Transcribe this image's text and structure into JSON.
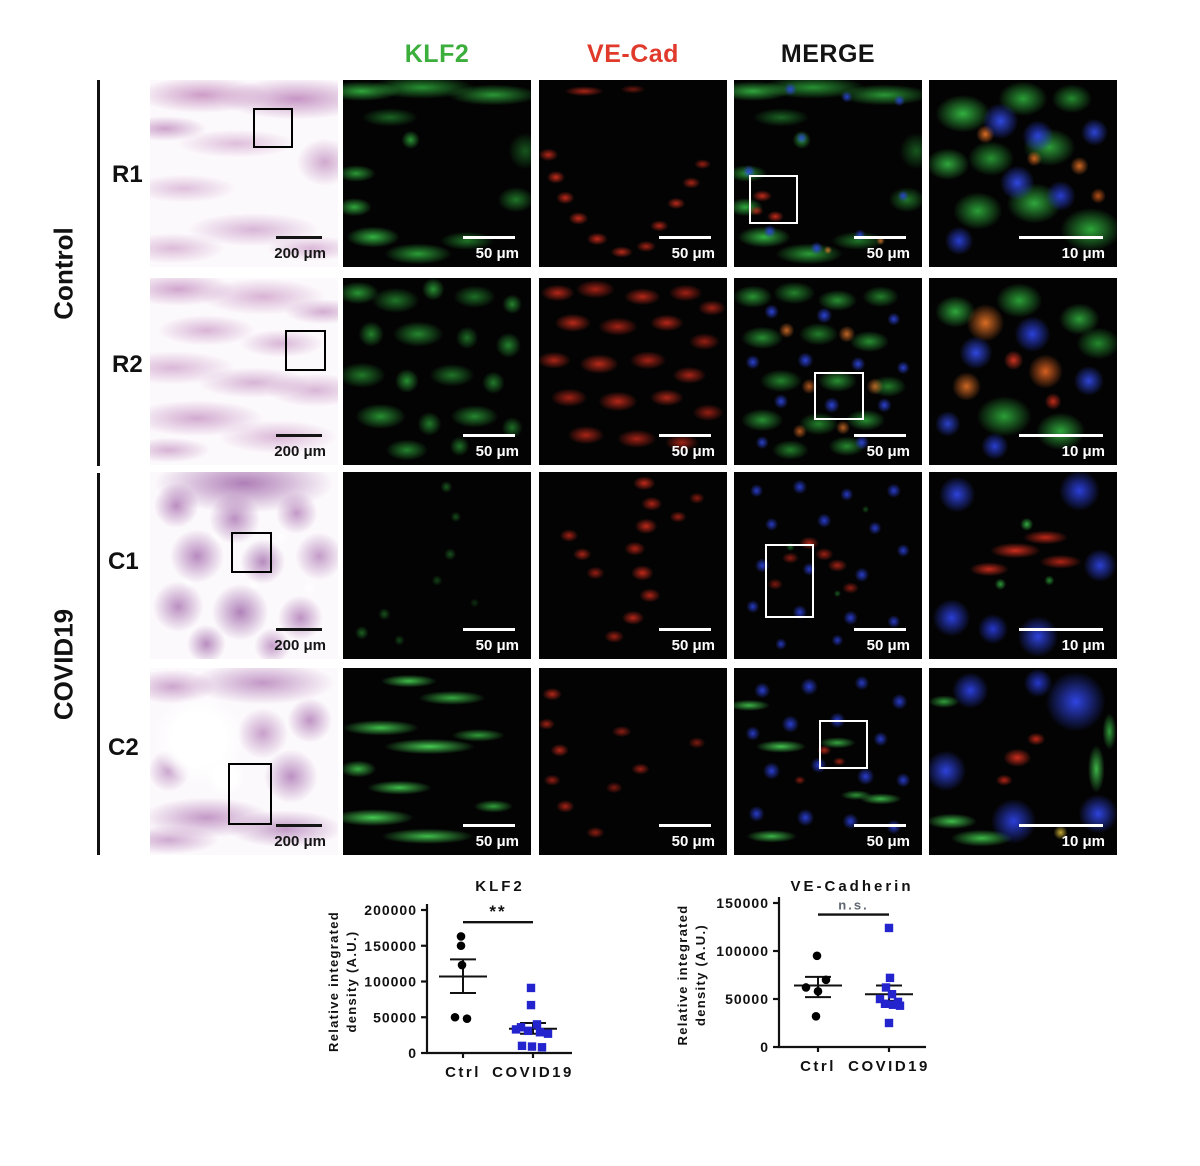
{
  "figure": {
    "col_headers": [
      {
        "label": "KLF2",
        "color": "#3cae3c"
      },
      {
        "label": "VE-Cad",
        "color": "#e03a2c"
      },
      {
        "label": "MERGE",
        "color": "#131313"
      }
    ],
    "row_groups": [
      {
        "label": "Control",
        "rows": [
          {
            "label": "R1"
          },
          {
            "label": "R2"
          }
        ]
      },
      {
        "label": "COVID19",
        "rows": [
          {
            "label": "C1"
          },
          {
            "label": "C2"
          }
        ]
      }
    ],
    "scales": {
      "histology": "200 μm",
      "fluorescence": "50 μm",
      "zoom": "10 μm"
    }
  },
  "chart_data": [
    {
      "type": "scatter",
      "title": "KLF2",
      "ylabel_lines": [
        "Relative integrated",
        "density (A.U.)"
      ],
      "ylabel": "Relative integrated density (A.U.)",
      "ylim": [
        0,
        200000
      ],
      "yticks": [
        0,
        50000,
        100000,
        150000,
        200000
      ],
      "grid": false,
      "categories": [
        "Ctrl",
        "COVID19"
      ],
      "series": [
        {
          "name": "Ctrl",
          "marker": "circle",
          "color": "#000000",
          "points": [
            [
              163000,
              -2
            ],
            [
              150000,
              -2
            ],
            [
              123000,
              -1
            ],
            [
              50000,
              -8
            ],
            [
              48000,
              4
            ]
          ],
          "mean": 107000,
          "sem_low": 84000,
          "sem_high": 131000
        },
        {
          "name": "COVID19",
          "marker": "square",
          "color": "#2424cf",
          "points": [
            [
              91000,
              -2
            ],
            [
              67000,
              -2
            ],
            [
              40000,
              4
            ],
            [
              36000,
              -12
            ],
            [
              33000,
              -17
            ],
            [
              31000,
              -5
            ],
            [
              29000,
              7
            ],
            [
              27000,
              15
            ],
            [
              10000,
              -11
            ],
            [
              9000,
              -1
            ],
            [
              8000,
              9
            ]
          ],
          "mean": 34000,
          "sem_low": 27000,
          "sem_high": 42000
        }
      ],
      "significance": {
        "label": "**",
        "y": 183000
      }
    },
    {
      "type": "scatter",
      "title": "VE-Cadherin",
      "ylabel_lines": [
        "Relative integrated",
        "density (A.U.)"
      ],
      "ylabel": "Relative integrated density (A.U.)",
      "ylim": [
        0,
        150000
      ],
      "yticks": [
        0,
        50000,
        100000,
        150000
      ],
      "grid": false,
      "categories": [
        "Ctrl",
        "COVID19"
      ],
      "series": [
        {
          "name": "Ctrl",
          "marker": "circle",
          "color": "#000000",
          "points": [
            [
              95000,
              -1
            ],
            [
              70000,
              8
            ],
            [
              62000,
              -12
            ],
            [
              58000,
              0
            ],
            [
              32000,
              -2
            ]
          ],
          "mean": 64000,
          "sem_low": 52000,
          "sem_high": 73000
        },
        {
          "name": "COVID19",
          "marker": "square",
          "color": "#2424cf",
          "points": [
            [
              124000,
              0
            ],
            [
              72000,
              1
            ],
            [
              62000,
              -3
            ],
            [
              55000,
              3
            ],
            [
              50000,
              -9
            ],
            [
              47000,
              9
            ],
            [
              45000,
              -4
            ],
            [
              44000,
              4
            ],
            [
              43000,
              11
            ],
            [
              25000,
              0
            ]
          ],
          "mean": 55000,
          "sem_low": 48000,
          "sem_high": 64000
        }
      ],
      "significance": {
        "label": "n.s.",
        "y": 138000
      }
    }
  ]
}
